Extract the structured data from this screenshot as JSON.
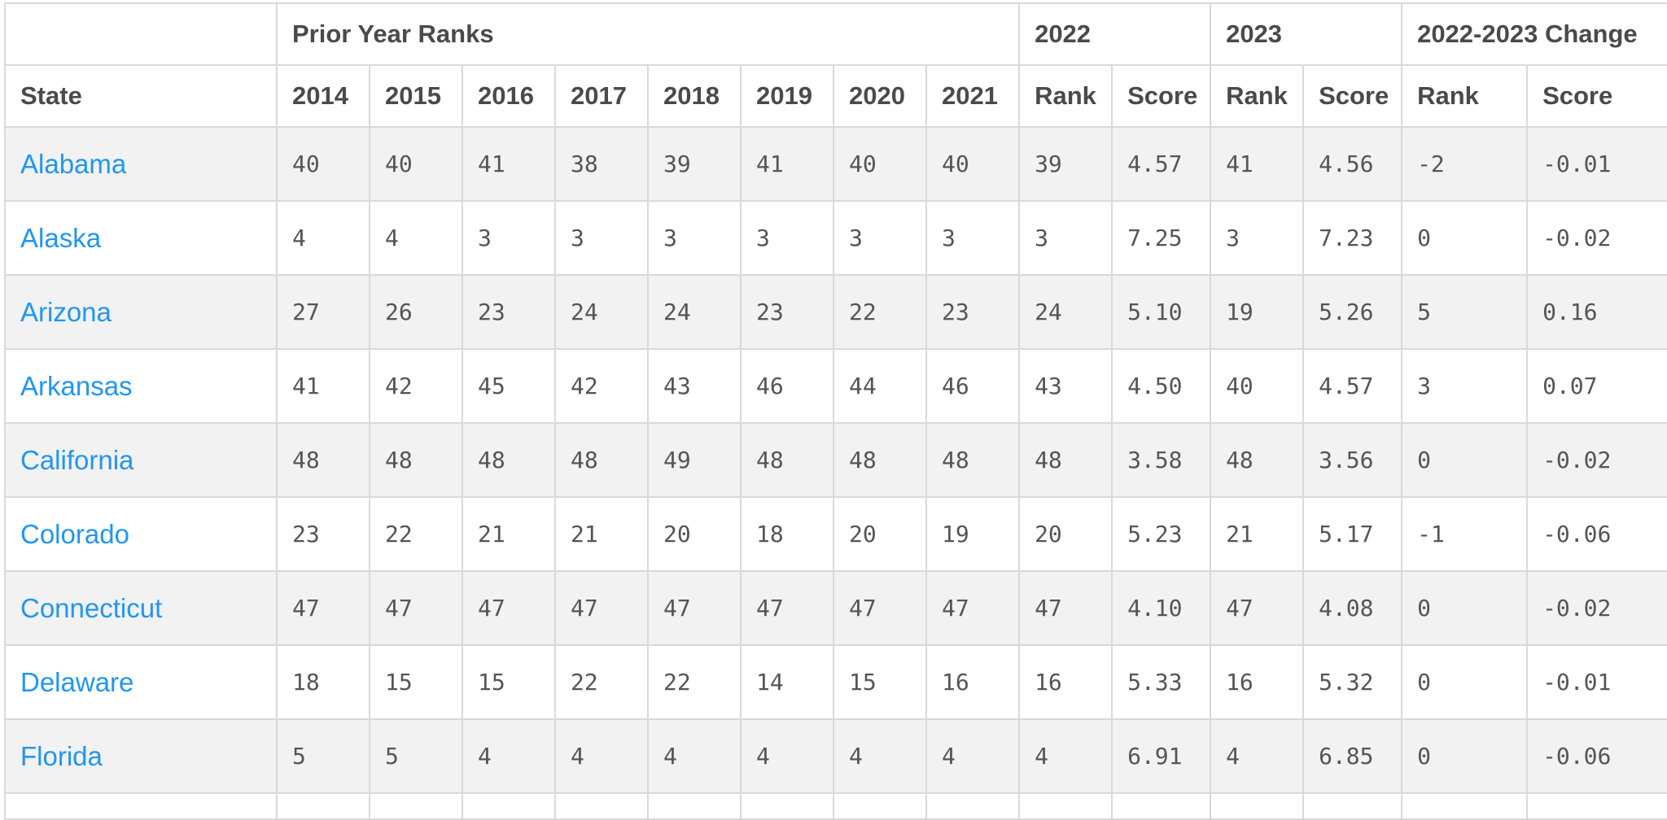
{
  "table": {
    "group_headers": {
      "prior": "Prior Year Ranks",
      "y2022": "2022",
      "y2023": "2023",
      "change": "2022-2023 Change"
    },
    "columns": {
      "state": "State",
      "y2014": "2014",
      "y2015": "2015",
      "y2016": "2016",
      "y2017": "2017",
      "y2018": "2018",
      "y2019": "2019",
      "y2020": "2020",
      "y2021": "2021",
      "rank_2022": "Rank",
      "score_2022": "Score",
      "rank_2023": "Rank",
      "score_2023": "Score",
      "rank_change": "Rank",
      "score_change": "Score"
    },
    "rows": [
      {
        "state": "Alabama",
        "v": [
          "40",
          "40",
          "41",
          "38",
          "39",
          "41",
          "40",
          "40",
          "39",
          "4.57",
          "41",
          "4.56",
          "-2",
          "-0.01"
        ]
      },
      {
        "state": "Alaska",
        "v": [
          "4",
          "4",
          "3",
          "3",
          "3",
          "3",
          "3",
          "3",
          "3",
          "7.25",
          "3",
          "7.23",
          "0",
          "-0.02"
        ]
      },
      {
        "state": "Arizona",
        "v": [
          "27",
          "26",
          "23",
          "24",
          "24",
          "23",
          "22",
          "23",
          "24",
          "5.10",
          "19",
          "5.26",
          "5",
          "0.16"
        ]
      },
      {
        "state": "Arkansas",
        "v": [
          "41",
          "42",
          "45",
          "42",
          "43",
          "46",
          "44",
          "46",
          "43",
          "4.50",
          "40",
          "4.57",
          "3",
          "0.07"
        ]
      },
      {
        "state": "California",
        "v": [
          "48",
          "48",
          "48",
          "48",
          "49",
          "48",
          "48",
          "48",
          "48",
          "3.58",
          "48",
          "3.56",
          "0",
          "-0.02"
        ]
      },
      {
        "state": "Colorado",
        "v": [
          "23",
          "22",
          "21",
          "21",
          "20",
          "18",
          "20",
          "19",
          "20",
          "5.23",
          "21",
          "5.17",
          "-1",
          "-0.06"
        ]
      },
      {
        "state": "Connecticut",
        "v": [
          "47",
          "47",
          "47",
          "47",
          "47",
          "47",
          "47",
          "47",
          "47",
          "4.10",
          "47",
          "4.08",
          "0",
          "-0.02"
        ]
      },
      {
        "state": "Delaware",
        "v": [
          "18",
          "15",
          "15",
          "22",
          "22",
          "14",
          "15",
          "16",
          "16",
          "5.33",
          "16",
          "5.32",
          "0",
          "-0.01"
        ]
      },
      {
        "state": "Florida",
        "v": [
          "5",
          "5",
          "4",
          "4",
          "4",
          "4",
          "4",
          "4",
          "4",
          "6.91",
          "4",
          "6.85",
          "0",
          "-0.06"
        ]
      }
    ]
  }
}
